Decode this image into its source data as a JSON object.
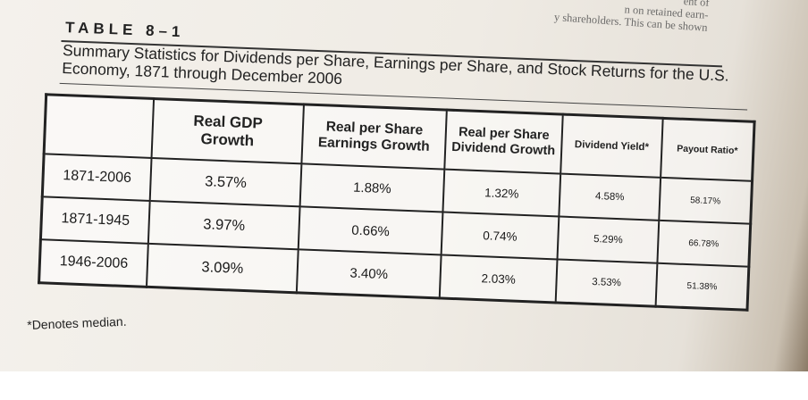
{
  "bleed_through": {
    "line1": "ent of",
    "line2": "n on retained earn-",
    "line3": "y shareholders. This can be shown"
  },
  "table_label": "TABLE 8–1",
  "title": {
    "line1": "Summary Statistics for Dividends per Share, Earnings per Share, and Stock Returns for the U.S.",
    "line2": "Economy, 1871 through December 2006"
  },
  "columns": [
    "",
    "Real GDP Growth",
    "Real per Share Earnings Growth",
    "Real per Share Dividend Growth",
    "Dividend Yield*",
    "Payout Ratio*"
  ],
  "rows": [
    {
      "period": "1871-2006",
      "gdp": "3.57%",
      "eps": "1.88%",
      "dps": "1.32%",
      "yield": "4.58%",
      "payout": "58.17%"
    },
    {
      "period": "1871-1945",
      "gdp": "3.97%",
      "eps": "0.66%",
      "dps": "0.74%",
      "yield": "5.29%",
      "payout": "66.78%"
    },
    {
      "period": "1946-2006",
      "gdp": "3.09%",
      "eps": "3.40%",
      "dps": "2.03%",
      "yield": "3.53%",
      "payout": "51.38%"
    }
  ],
  "footnote": "*Denotes median.",
  "colors": {
    "ink": "#222222",
    "paper": "#f2efe9"
  }
}
